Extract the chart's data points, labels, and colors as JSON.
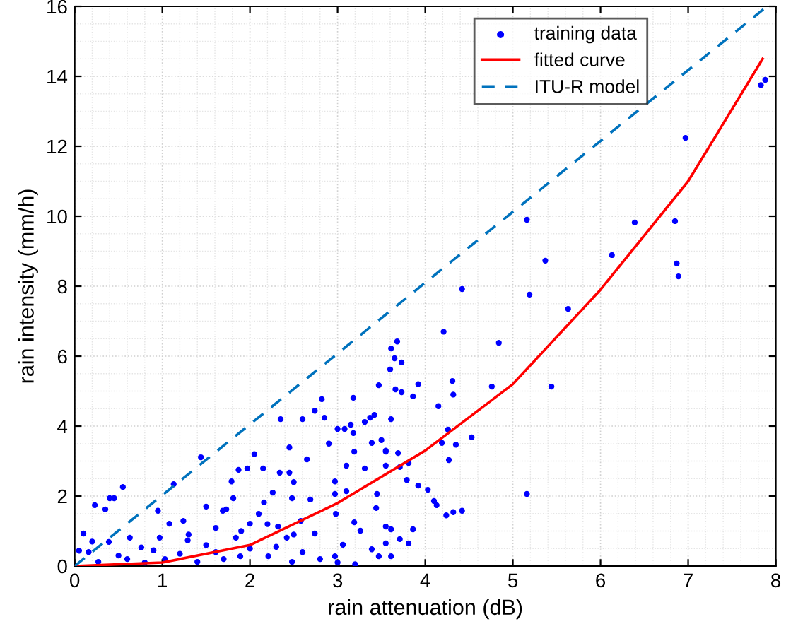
{
  "chart_data": {
    "type": "scatter",
    "xlabel": "rain attenuation (dB)",
    "ylabel": "rain intensity (mm/h)",
    "xlim": [
      0,
      8
    ],
    "ylim": [
      0,
      16
    ],
    "xticks": [
      0,
      1,
      2,
      3,
      4,
      5,
      6,
      7,
      8
    ],
    "yticks": [
      0,
      2,
      4,
      6,
      8,
      10,
      12,
      14,
      16
    ],
    "grid": true,
    "legend": "top right",
    "series": [
      {
        "name": "training data",
        "marker": "circle",
        "color": "#0000ff",
        "x": [
          7.83,
          7.88,
          6.97,
          6.39,
          6.85,
          6.13,
          6.87,
          6.89,
          5.16,
          5.37,
          5.19,
          5.63,
          5.44,
          5.16,
          4.42,
          4.21,
          4.84,
          3.68,
          3.61,
          3.65,
          3.73,
          3.6,
          3.47,
          3.66,
          3.73,
          3.86,
          3.92,
          4.31,
          4.32,
          4.76,
          4.15,
          3.18,
          4.26,
          4.19,
          4.35,
          4.53,
          4.27,
          4.24,
          4.32,
          4.42,
          4.03,
          4.1,
          4.13,
          3.92,
          3.79,
          3.81,
          3.71,
          3.55,
          3.69,
          3.55,
          3.45,
          3.44,
          3.55,
          3.61,
          3.86,
          3.71,
          3.81,
          3.55,
          3.61,
          2.85,
          3.0,
          3.08,
          3.15,
          3.18,
          3.31,
          3.37,
          3.42,
          3.61,
          3.5,
          3.39,
          3.55,
          3.19,
          3.1,
          3.31,
          2.97,
          3.1,
          2.97,
          2.98,
          3.19,
          3.26,
          3.06,
          2.97,
          3.39,
          3.47,
          2.35,
          2.82,
          2.74,
          1.44,
          0.55,
          1.13,
          0.45,
          0.4,
          0.23,
          0.35,
          0.95,
          1.5,
          1.87,
          1.97,
          2.15,
          2.34,
          2.45,
          2.45,
          1.79,
          1.81,
          1.73,
          1.69,
          1.24,
          1.08,
          0.63,
          0.1,
          0.05,
          0.16,
          0.39,
          0.76,
          0.97,
          1.29,
          1.61,
          2.1,
          2.16,
          2.26,
          2.48,
          2.69,
          2.32,
          2.58,
          1.84,
          2.42,
          2.0,
          2.74,
          1.61,
          1.89,
          2.21,
          2.48,
          1.4,
          1.03,
          0.6,
          0.27,
          0.5,
          0.8,
          1.2,
          1.5,
          1.7,
          2.0,
          2.3,
          2.6,
          2.8,
          3.0,
          3.2,
          1.9,
          2.2,
          2.5,
          1.3,
          0.9,
          0.2,
          2.05,
          2.5,
          2.65,
          2.9,
          2.6
        ],
        "values": [
          13.75,
          13.9,
          12.24,
          9.82,
          9.86,
          8.89,
          8.65,
          8.28,
          9.9,
          8.73,
          7.76,
          7.35,
          5.13,
          2.06,
          7.92,
          6.7,
          6.38,
          6.42,
          6.22,
          5.94,
          5.82,
          5.62,
          5.17,
          5.05,
          4.97,
          4.85,
          5.2,
          5.29,
          4.9,
          5.13,
          4.57,
          4.81,
          3.9,
          3.52,
          3.47,
          3.68,
          3.03,
          1.45,
          1.54,
          1.58,
          2.18,
          1.86,
          1.74,
          2.3,
          2.46,
          2.95,
          2.83,
          3.27,
          3.23,
          2.87,
          2.06,
          1.66,
          1.13,
          1.05,
          1.05,
          0.77,
          0.65,
          0.65,
          0.28,
          4.24,
          3.92,
          3.92,
          4.04,
          3.8,
          4.12,
          4.24,
          4.32,
          4.2,
          3.6,
          3.52,
          3.3,
          3.27,
          2.87,
          2.79,
          2.42,
          2.14,
          2.06,
          1.49,
          1.25,
          1.01,
          0.61,
          0.28,
          0.48,
          0.28,
          4.2,
          4.77,
          4.44,
          3.11,
          2.26,
          2.34,
          1.94,
          1.94,
          1.74,
          1.62,
          1.58,
          1.7,
          2.75,
          2.79,
          2.79,
          2.67,
          2.67,
          3.39,
          2.42,
          1.94,
          1.62,
          1.58,
          1.29,
          1.21,
          0.81,
          0.93,
          0.44,
          0.4,
          0.69,
          0.53,
          0.81,
          0.73,
          1.09,
          1.49,
          1.82,
          2.1,
          1.94,
          1.9,
          1.13,
          1.29,
          0.81,
          0.81,
          1.21,
          0.93,
          0.4,
          0.28,
          0.28,
          0.12,
          0.12,
          0.2,
          0.2,
          0.12,
          0.3,
          0.1,
          0.35,
          0.6,
          0.2,
          0.5,
          0.55,
          0.4,
          0.2,
          0.1,
          0.05,
          1.0,
          1.2,
          0.9,
          0.9,
          0.45,
          0.7,
          3.2,
          2.4,
          3.05,
          3.5,
          4.2
        ]
      },
      {
        "name": "fitted curve",
        "type": "line",
        "color": "#ff0000",
        "line_style": "solid",
        "marker": "none",
        "x": [
          0,
          1,
          2,
          3,
          4,
          5,
          6,
          7,
          7.85
        ],
        "values": [
          0,
          0.1,
          0.6,
          1.8,
          3.3,
          5.2,
          7.9,
          11.0,
          14.5
        ]
      },
      {
        "name": "ITU-R model",
        "type": "line",
        "color": "#0072bd",
        "line_style": "dashed",
        "marker": "none",
        "x": [
          0,
          7.9
        ],
        "values": [
          0,
          16
        ]
      }
    ]
  }
}
